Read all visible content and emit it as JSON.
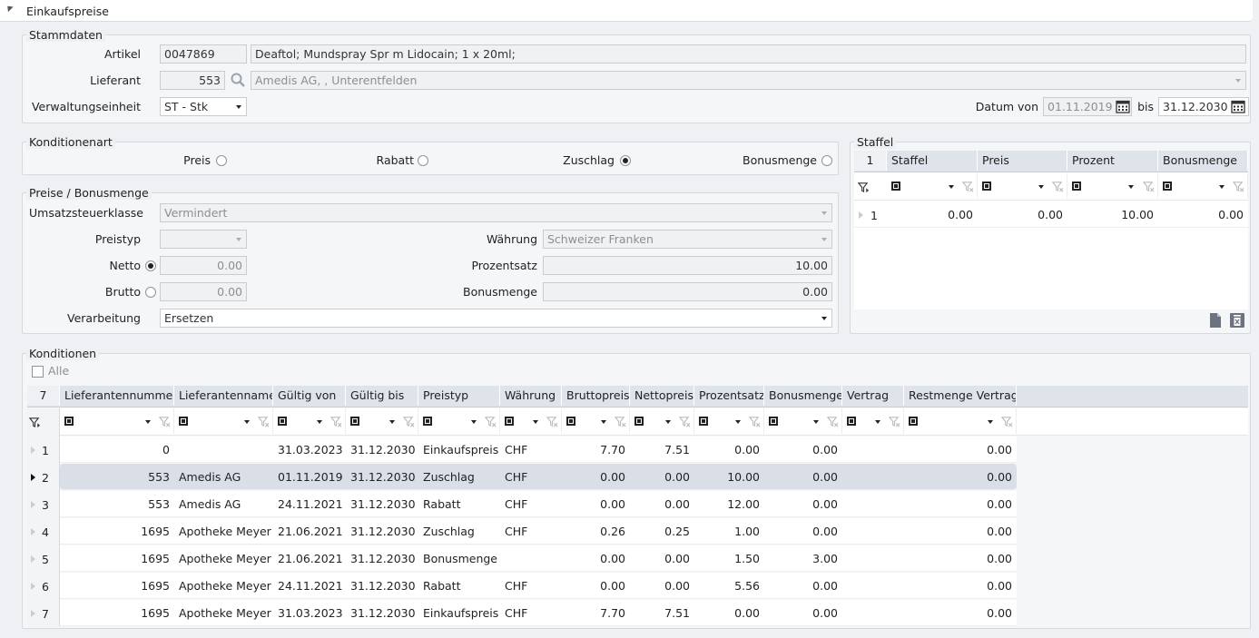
{
  "panel": {
    "title": "Einkaufspreise"
  },
  "stammdaten": {
    "legend": "Stammdaten",
    "artikel_label": "Artikel",
    "artikel_nr": "0047869",
    "artikel_name": "Deaftol; Mundspray Spr m Lidocain; 1 x 20ml;",
    "lieferant_label": "Lieferant",
    "lieferant_nr": "553",
    "lieferant_name": "Amedis AG, , Unterentfelden",
    "verwaltungseinheit_label": "Verwaltungseinheit",
    "verwaltungseinheit_value": "ST - Stk",
    "datum_von_label": "Datum von",
    "datum_von": "01.11.2019",
    "bis_label": "bis",
    "datum_bis": "31.12.2030"
  },
  "konditionenart": {
    "legend": "Konditionenart",
    "options": [
      {
        "label": "Preis",
        "selected": false
      },
      {
        "label": "Rabatt",
        "selected": false
      },
      {
        "label": "Zuschlag",
        "selected": true
      },
      {
        "label": "Bonusmenge",
        "selected": false
      }
    ]
  },
  "preise": {
    "legend": "Preise / Bonusmenge",
    "ust_label": "Umsatzsteuerklasse",
    "ust_value": "Vermindert",
    "preistyp_label": "Preistyp",
    "preistyp_value": "",
    "waehrung_label": "Währung",
    "waehrung_value": "Schweizer Franken",
    "netto_label": "Netto",
    "netto_value": "0.00",
    "netto_selected": true,
    "prozentsatz_label": "Prozentsatz",
    "prozentsatz_value": "10.00",
    "brutto_label": "Brutto",
    "brutto_value": "0.00",
    "bonusmenge_label": "Bonusmenge",
    "bonusmenge_value": "0.00",
    "verarbeitung_label": "Verarbeitung",
    "verarbeitung_value": "Ersetzen"
  },
  "staffel": {
    "legend": "Staffel",
    "count": "1",
    "columns": [
      "Staffel",
      "Preis",
      "Prozent",
      "Bonusmenge"
    ],
    "rows": [
      {
        "n": "1",
        "cells": [
          "0.00",
          "0.00",
          "10.00",
          "0.00"
        ]
      }
    ]
  },
  "konditionen": {
    "legend": "Konditionen",
    "alle_label": "Alle",
    "count": "7",
    "columns": [
      "Lieferantennummer",
      "Lieferantenname",
      "Gültig von",
      "Gültig bis",
      "Preistyp",
      "Währung",
      "Bruttopreis",
      "Nettopreis",
      "Prozentsatz",
      "Bonusmenge",
      "Vertrag",
      "Restmenge Vertrag"
    ],
    "rows": [
      {
        "n": "1",
        "cells": [
          "0",
          "",
          "31.03.2023",
          "31.12.2030",
          "Einkaufspreis",
          "CHF",
          "7.70",
          "7.51",
          "0.00",
          "0.00",
          "",
          "0.00"
        ]
      },
      {
        "n": "2",
        "cells": [
          "553",
          "Amedis AG",
          "01.11.2019",
          "31.12.2030",
          "Zuschlag",
          "CHF",
          "0.00",
          "0.00",
          "10.00",
          "0.00",
          "",
          "0.00"
        ]
      },
      {
        "n": "3",
        "cells": [
          "553",
          "Amedis AG",
          "24.11.2021",
          "31.12.2030",
          "Rabatt",
          "CHF",
          "0.00",
          "0.00",
          "12.00",
          "0.00",
          "",
          "0.00"
        ]
      },
      {
        "n": "4",
        "cells": [
          "1695",
          "Apotheke Meyer",
          "21.06.2021",
          "31.12.2030",
          "Zuschlag",
          "CHF",
          "0.26",
          "0.25",
          "1.00",
          "0.00",
          "",
          "0.00"
        ]
      },
      {
        "n": "5",
        "cells": [
          "1695",
          "Apotheke Meyer",
          "21.06.2021",
          "31.12.2030",
          "Bonusmenge",
          "",
          "0.00",
          "0.00",
          "1.50",
          "3.00",
          "",
          "0.00"
        ]
      },
      {
        "n": "6",
        "cells": [
          "1695",
          "Apotheke Meyer",
          "24.11.2021",
          "31.12.2030",
          "Rabatt",
          "CHF",
          "0.00",
          "0.00",
          "5.56",
          "0.00",
          "",
          "0.00"
        ]
      },
      {
        "n": "7",
        "cells": [
          "1695",
          "Apotheke Meyer",
          "31.03.2023",
          "31.12.2030",
          "Einkaufspreis",
          "CHF",
          "7.70",
          "7.51",
          "0.00",
          "0.00",
          "",
          "0.00"
        ]
      }
    ]
  }
}
